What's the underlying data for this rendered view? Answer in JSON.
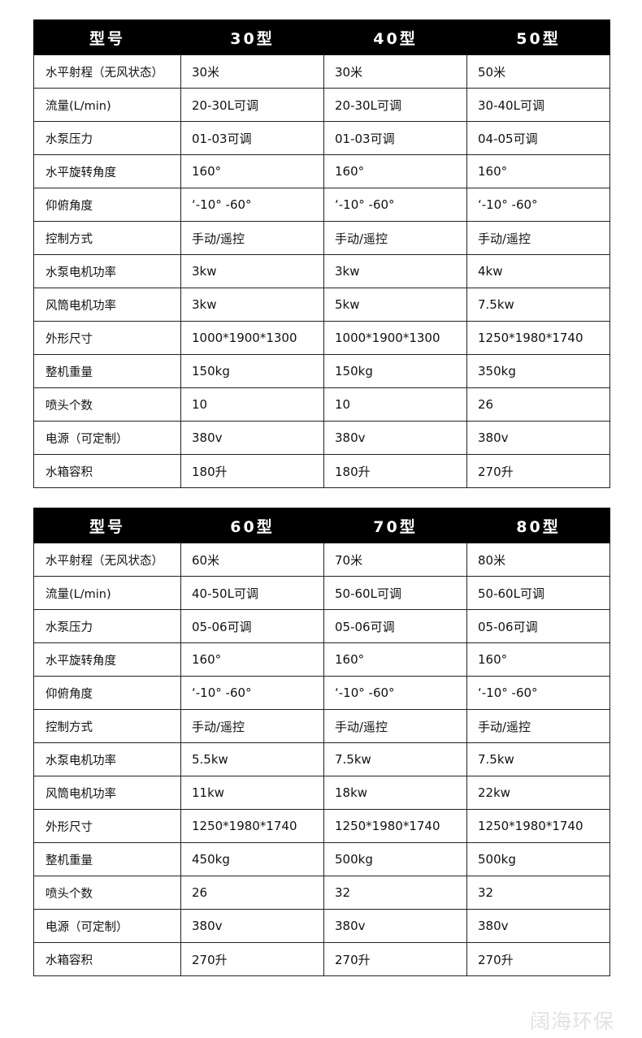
{
  "tables": [
    {
      "headers": [
        "型号",
        "30型",
        "40型",
        "50型"
      ],
      "rows": [
        [
          "水平射程（无风状态）",
          "30米",
          "30米",
          "50米"
        ],
        [
          "流量(L/min)",
          "20-30L可调",
          "20-30L可调",
          "30-40L可调"
        ],
        [
          "水泵压力",
          "01-03可调",
          "01-03可调",
          "04-05可调"
        ],
        [
          "水平旋转角度",
          "160°",
          "160°",
          "160°"
        ],
        [
          "仰俯角度",
          " ‘-10° -60°",
          " ‘-10° -60°",
          " ‘-10° -60°"
        ],
        [
          "控制方式",
          "手动/遥控",
          "手动/遥控",
          "手动/遥控"
        ],
        [
          "水泵电机功率",
          "3kw",
          "3kw",
          "4kw"
        ],
        [
          "风筒电机功率",
          "3kw",
          "5kw",
          "7.5kw"
        ],
        [
          "外形尺寸",
          "1000*1900*1300",
          "1000*1900*1300",
          "1250*1980*1740"
        ],
        [
          "整机重量",
          "150kg",
          "150kg",
          "350kg"
        ],
        [
          "喷头个数",
          "10",
          "10",
          "26"
        ],
        [
          "电源（可定制）",
          "380v",
          "380v",
          "380v"
        ],
        [
          "水箱容积",
          "180升",
          "180升",
          "270升"
        ]
      ]
    },
    {
      "headers": [
        "型号",
        "60型",
        "70型",
        "80型"
      ],
      "rows": [
        [
          "水平射程（无风状态）",
          "60米",
          "70米",
          "80米"
        ],
        [
          "流量(L/min)",
          "40-50L可调",
          "50-60L可调",
          "50-60L可调"
        ],
        [
          "水泵压力",
          "05-06可调",
          "05-06可调",
          "05-06可调"
        ],
        [
          "水平旋转角度",
          "160°",
          "160°",
          "160°"
        ],
        [
          "仰俯角度",
          " ‘-10° -60°",
          " ‘-10° -60°",
          " ‘-10° -60°"
        ],
        [
          "控制方式",
          "手动/遥控",
          "手动/遥控",
          "手动/遥控"
        ],
        [
          "水泵电机功率",
          "5.5kw",
          "7.5kw",
          "7.5kw"
        ],
        [
          "风筒电机功率",
          "11kw",
          "18kw",
          "22kw"
        ],
        [
          "外形尺寸",
          "1250*1980*1740",
          "1250*1980*1740",
          "1250*1980*1740"
        ],
        [
          "整机重量",
          "450kg",
          "500kg",
          "500kg"
        ],
        [
          "喷头个数",
          "26",
          "32",
          "32"
        ],
        [
          "电源（可定制）",
          "380v",
          "380v",
          "380v"
        ],
        [
          "水箱容积",
          "270升",
          "270升",
          "270升"
        ]
      ]
    }
  ],
  "watermark": "阔海环保"
}
